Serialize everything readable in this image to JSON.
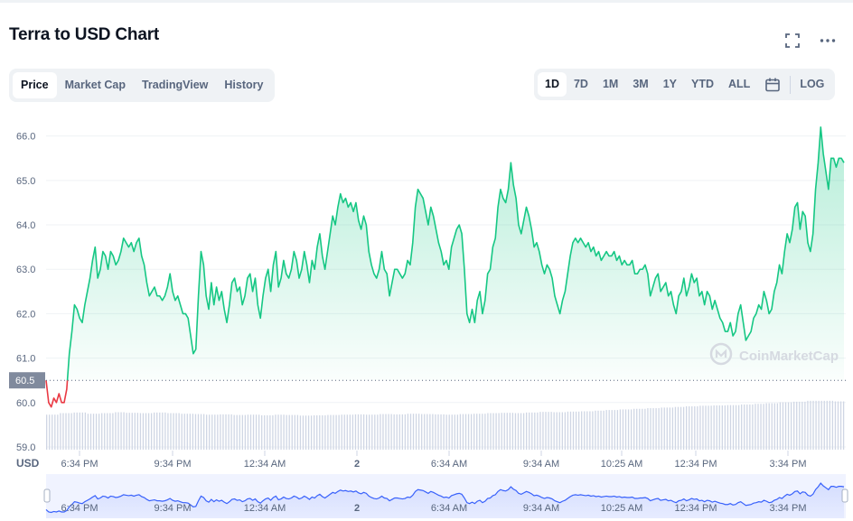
{
  "header": {
    "title": "Terra to USD Chart",
    "fullscreen_icon": "fullscreen-icon",
    "more_icon": "more-horizontal-icon"
  },
  "tabs": [
    {
      "label": "Price",
      "active": true
    },
    {
      "label": "Market Cap",
      "active": false
    },
    {
      "label": "TradingView",
      "active": false
    },
    {
      "label": "History",
      "active": false
    }
  ],
  "ranges": [
    {
      "label": "1D",
      "active": true
    },
    {
      "label": "7D",
      "active": false
    },
    {
      "label": "1M",
      "active": false
    },
    {
      "label": "3M",
      "active": false
    },
    {
      "label": "1Y",
      "active": false
    },
    {
      "label": "YTD",
      "active": false
    },
    {
      "label": "ALL",
      "active": false
    }
  ],
  "calendar_icon": "calendar-icon",
  "log_label": "LOG",
  "colors": {
    "up": "#16c784",
    "down": "#ea3943",
    "volume": "#cfd6e4",
    "navigator": "#3861fb"
  },
  "chart_data": {
    "type": "area",
    "ylabel": "USD",
    "watermark": "CoinMarketCap",
    "yticks": [
      59.0,
      60.0,
      61.0,
      62.0,
      63.0,
      64.0,
      65.0,
      66.0
    ],
    "ylim": [
      59.0,
      66.4
    ],
    "baseline": {
      "value": 60.5,
      "label": "60.5"
    },
    "xticks": [
      "6:34 PM",
      "9:34 PM",
      "12:34 AM",
      "2",
      "6:34 AM",
      "9:34 AM",
      "10:25 AM",
      "12:34 PM",
      "3:34 PM"
    ],
    "grid": true,
    "series": [
      {
        "values": [
          60.5,
          60.0,
          59.9,
          60.1,
          60.0,
          60.2,
          60.0,
          60.0,
          60.3,
          61.1,
          61.6,
          62.2,
          62.1,
          61.9,
          61.8,
          62.2,
          62.5,
          62.8,
          63.2,
          63.5,
          62.8,
          63.0,
          63.4,
          63.3,
          63.0,
          63.4,
          63.3,
          63.1,
          63.2,
          63.4,
          63.7,
          63.6,
          63.5,
          63.6,
          63.4,
          63.6,
          63.7,
          63.3,
          63.1,
          62.7,
          62.4,
          62.5,
          62.6,
          62.4,
          62.4,
          62.3,
          62.4,
          62.6,
          62.9,
          62.5,
          62.3,
          62.4,
          62.2,
          62.0,
          62.0,
          61.9,
          61.5,
          61.1,
          61.2,
          62.4,
          63.4,
          63.1,
          62.4,
          62.1,
          62.7,
          62.2,
          62.6,
          62.3,
          62.5,
          62.1,
          61.8,
          62.2,
          62.7,
          62.8,
          62.5,
          62.6,
          62.2,
          62.4,
          62.8,
          62.9,
          62.5,
          62.8,
          62.2,
          61.9,
          62.4,
          62.8,
          63.0,
          62.5,
          63.1,
          63.4,
          62.6,
          62.8,
          63.2,
          62.9,
          62.8,
          63.0,
          63.4,
          63.2,
          62.8,
          63.0,
          63.4,
          63.1,
          62.7,
          63.2,
          63.0,
          63.5,
          63.8,
          63.3,
          63.0,
          63.4,
          63.8,
          64.2,
          64.0,
          64.4,
          64.7,
          64.5,
          64.6,
          64.4,
          64.5,
          64.3,
          64.5,
          64.1,
          63.9,
          64.2,
          64.0,
          63.4,
          63.1,
          62.9,
          62.8,
          63.0,
          63.4,
          63.0,
          62.9,
          62.4,
          62.7,
          63.0,
          63.0,
          62.9,
          62.8,
          62.9,
          63.2,
          63.1,
          63.6,
          64.4,
          64.8,
          64.7,
          64.6,
          64.3,
          64.0,
          64.4,
          64.2,
          63.9,
          63.6,
          63.4,
          63.1,
          63.2,
          63.0,
          63.5,
          63.7,
          63.9,
          64.0,
          63.8,
          63.0,
          62.0,
          61.8,
          62.1,
          61.8,
          62.3,
          62.5,
          62.0,
          62.3,
          62.9,
          63.0,
          63.5,
          63.7,
          64.4,
          64.8,
          64.6,
          64.5,
          64.8,
          65.4,
          64.9,
          64.6,
          64.0,
          63.8,
          64.1,
          64.4,
          64.2,
          63.9,
          63.5,
          63.6,
          63.4,
          63.1,
          62.9,
          63.1,
          63.0,
          62.8,
          62.4,
          62.2,
          62.0,
          62.3,
          62.5,
          62.9,
          63.3,
          63.6,
          63.7,
          63.6,
          63.7,
          63.6,
          63.5,
          63.6,
          63.4,
          63.5,
          63.3,
          63.4,
          63.2,
          63.3,
          63.4,
          63.3,
          63.3,
          63.4,
          63.2,
          63.3,
          63.1,
          63.2,
          63.1,
          63.1,
          63.2,
          62.9,
          62.9,
          63.0,
          63.0,
          63.1,
          62.9,
          62.4,
          62.6,
          62.8,
          62.9,
          62.5,
          62.6,
          62.7,
          62.4,
          62.5,
          62.2,
          62.0,
          62.4,
          62.5,
          62.8,
          62.4,
          62.6,
          62.9,
          62.7,
          62.8,
          62.4,
          62.5,
          62.2,
          62.5,
          62.4,
          62.1,
          62.3,
          62.1,
          61.9,
          61.8,
          61.6,
          61.6,
          61.8,
          61.5,
          61.6,
          62.0,
          62.2,
          61.8,
          61.4,
          61.5,
          61.6,
          61.9,
          62.0,
          62.2,
          62.1,
          62.5,
          62.3,
          62.0,
          62.1,
          62.5,
          62.7,
          63.1,
          62.9,
          63.4,
          63.8,
          63.6,
          63.9,
          64.4,
          64.5,
          63.9,
          64.3,
          64.2,
          63.6,
          63.4,
          63.8,
          64.8,
          65.4,
          66.2,
          65.6,
          65.2,
          64.8,
          65.5,
          65.5,
          65.3,
          65.5,
          65.5,
          65.4
        ],
        "line_color_up": "#16c784",
        "line_color_down": "#ea3943"
      }
    ],
    "volume": [
      0.55,
      0.6,
      0.62,
      0.58,
      0.6,
      0.63,
      0.61,
      0.6,
      0.62,
      0.6,
      0.58,
      0.57,
      0.55,
      0.56,
      0.54,
      0.55,
      0.53,
      0.55,
      0.54,
      0.52,
      0.53,
      0.54,
      0.55,
      0.56,
      0.55,
      0.57,
      0.56,
      0.58,
      0.57,
      0.56,
      0.55,
      0.57,
      0.58,
      0.6,
      0.61,
      0.6,
      0.62,
      0.64,
      0.63,
      0.65,
      0.66,
      0.68,
      0.7,
      0.72,
      0.74,
      0.76,
      0.78,
      0.8,
      0.82,
      0.84,
      0.85,
      0.86,
      0.88,
      0.9,
      0.92,
      0.95,
      0.97,
      1.0,
      1.0,
      0.98
    ],
    "navigator": {
      "xticks": [
        "6:34 PM",
        "9:34 PM",
        "12:34 AM",
        "2",
        "6:34 AM",
        "9:34 AM",
        "10:25 AM",
        "12:34 PM",
        "3:34 PM"
      ]
    }
  }
}
